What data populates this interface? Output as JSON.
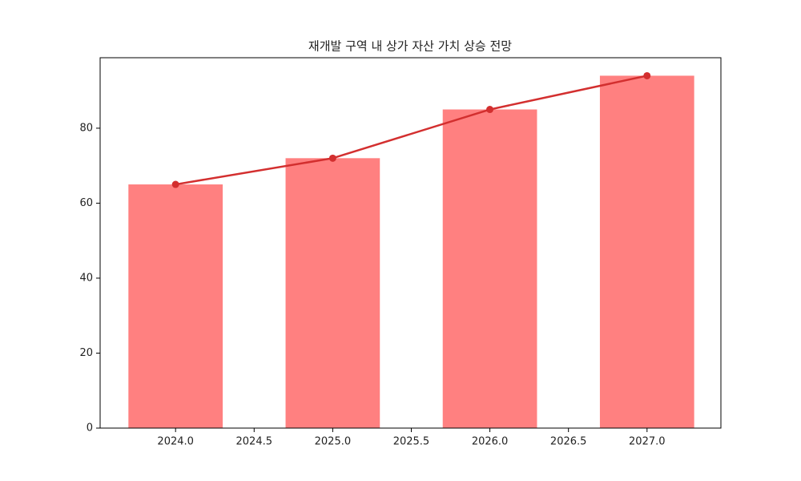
{
  "chart_data": {
    "type": "bar",
    "title": "재개발 구역 내 상가 자산 가치 상승 전망",
    "x": [
      2024,
      2025,
      2026,
      2027
    ],
    "series": [
      {
        "type": "bar",
        "color": "#ff8080",
        "values": [
          65,
          72,
          85,
          94
        ]
      },
      {
        "type": "line",
        "color": "#d32f2f",
        "values": [
          65,
          72,
          85,
          94
        ]
      }
    ],
    "xlim": [
      2023.52,
      2027.47
    ],
    "xticks": [
      {
        "value": 2024,
        "label": "2024.0"
      },
      2024.5,
      {
        "value": 2025,
        "label": "2025.0"
      },
      2025.5,
      {
        "value": 2026,
        "label": "2026.0"
      },
      2026.5,
      {
        "value": 2027,
        "label": "2027.0"
      }
    ],
    "ylim": [
      0,
      98.8
    ],
    "yticks": [
      0,
      20,
      40,
      60,
      80
    ],
    "grid": false
  }
}
